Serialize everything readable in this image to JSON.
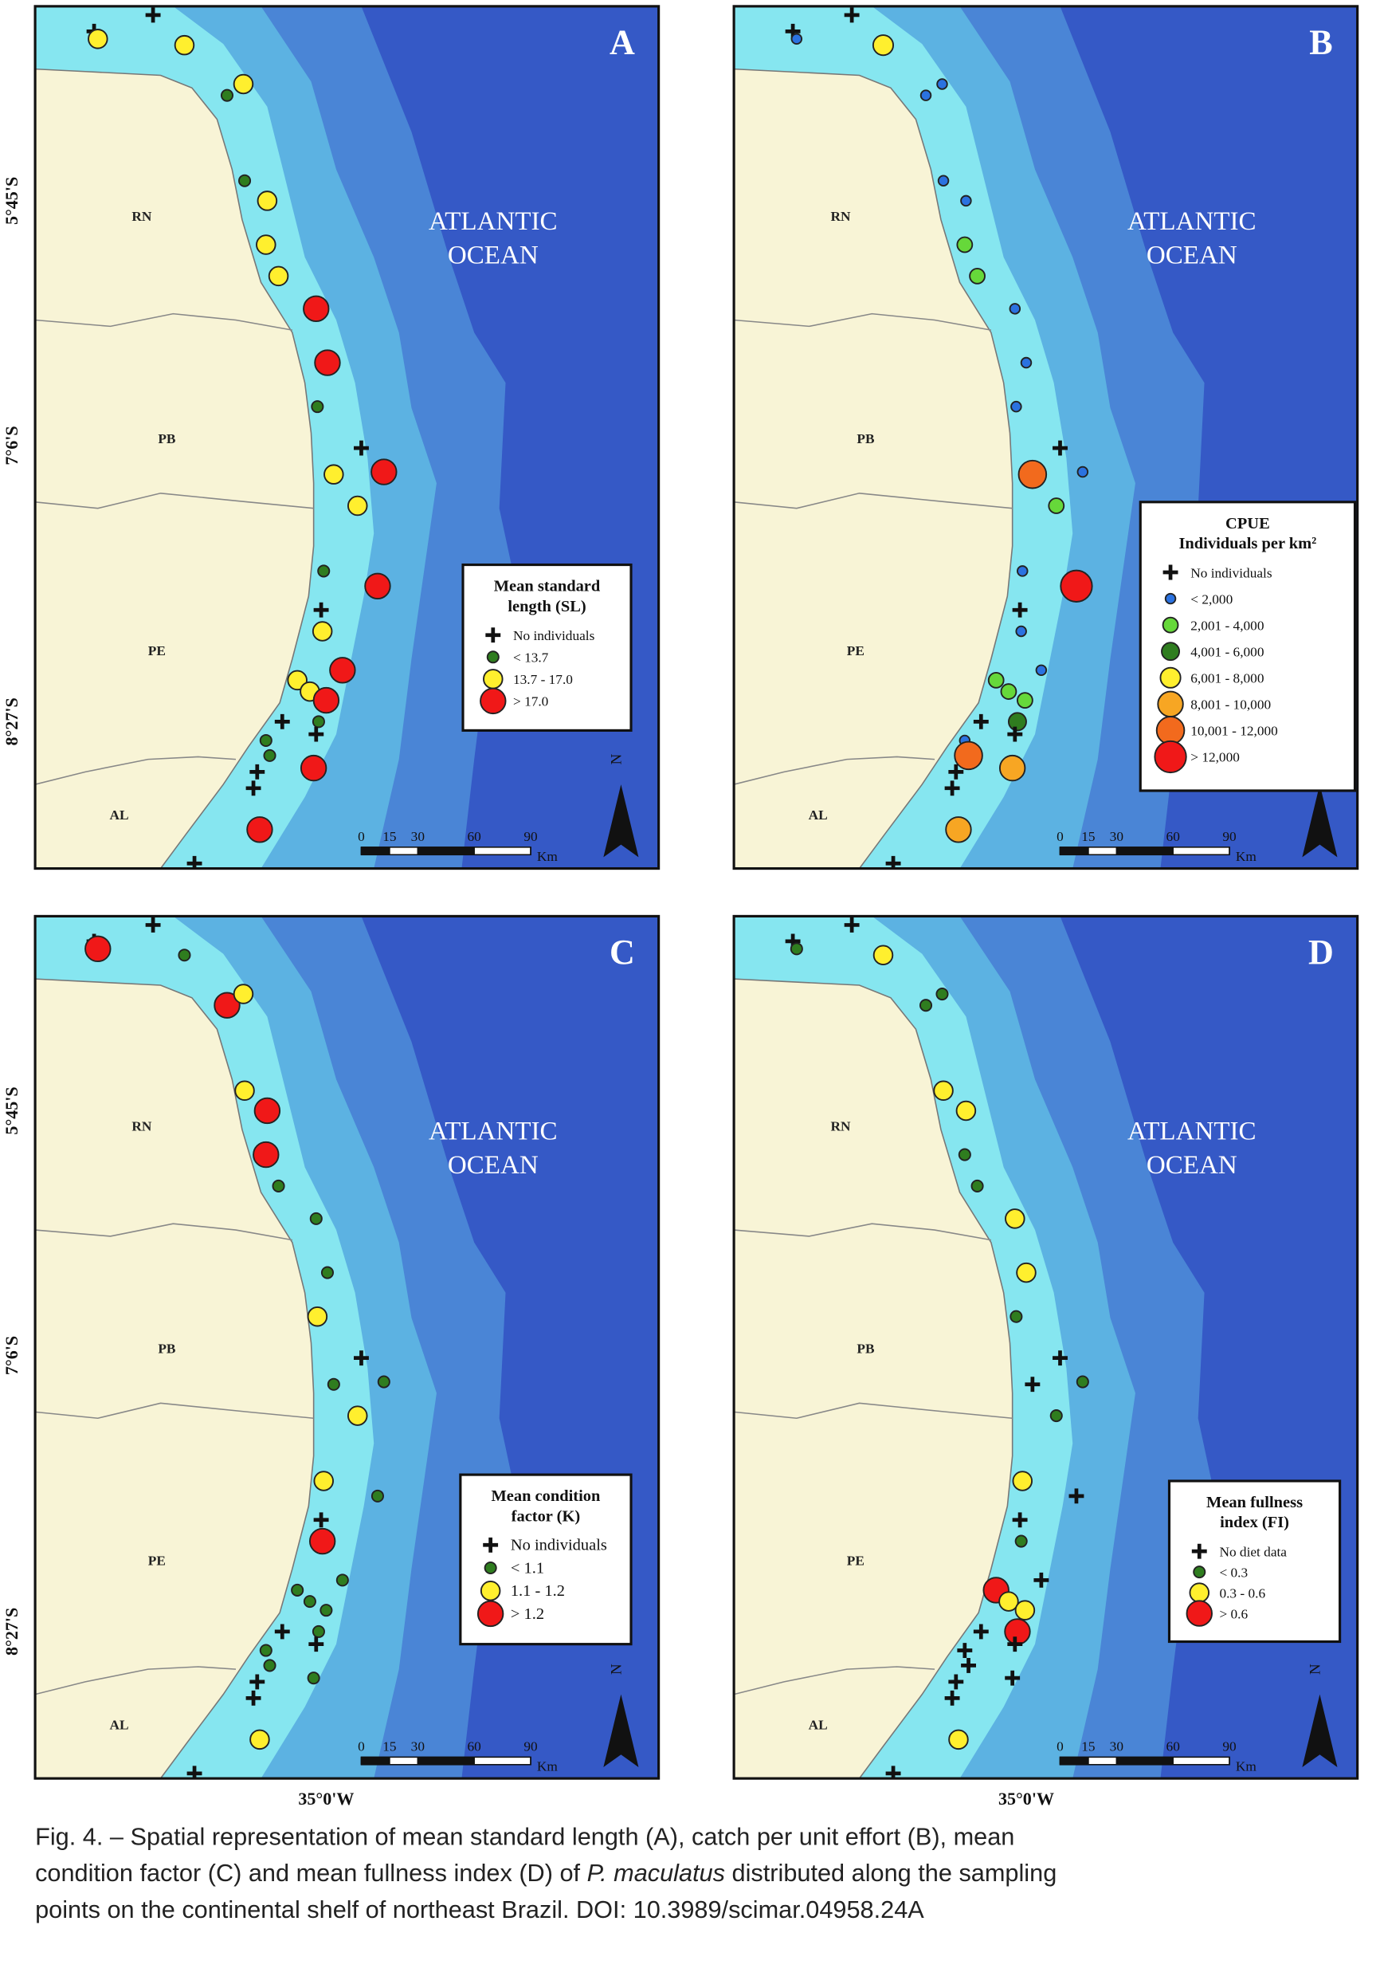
{
  "panels": [
    {
      "letter": "A",
      "legend": {
        "title": [
          "Mean standard",
          "length (SL)"
        ],
        "entries": [
          "No individuals",
          "< 13.7",
          "13.7 - 17.0",
          "> 17.0"
        ]
      }
    },
    {
      "letter": "B",
      "legend": {
        "title": [
          "CPUE",
          "Individuals per km²"
        ],
        "entries": [
          "No individuals",
          "< 2,000",
          "2,001 - 4,000",
          "4,001 - 6,000",
          "6,001 - 8,000",
          "8,001 - 10,000",
          "10,001 - 12,000",
          "> 12,000"
        ]
      }
    },
    {
      "letter": "C",
      "legend": {
        "title": [
          "Mean condition",
          "factor (K)"
        ],
        "entries": [
          "No individuals",
          "< 1.1",
          "1.1 - 1.2",
          "> 1.2"
        ]
      }
    },
    {
      "letter": "D",
      "legend": {
        "title": [
          "Mean fullness",
          "index (FI)"
        ],
        "entries": [
          "No diet data",
          "< 0.3",
          "0.3 - 0.6",
          "> 0.6"
        ]
      }
    }
  ],
  "states": [
    "RN",
    "PB",
    "PE",
    "AL"
  ],
  "ocean": [
    "ATLANTIC",
    "OCEAN"
  ],
  "scale": {
    "ticks": [
      0,
      15,
      30,
      60,
      90
    ],
    "unit": "Km"
  },
  "north": "N",
  "latitudes": [
    "5°45'S",
    "7°6'S",
    "8°27'S"
  ],
  "longitude": "35°0'W",
  "caption": {
    "line1": "Fig. 4. – Spatial representation of mean standard length (A), catch per unit effort (B), mean",
    "line2": [
      "condition factor (C) and mean fullness index (D) of ",
      "P. maculatus",
      " distributed along the sampling"
    ],
    "line3": "points on the continental shelf of northeast Brazil. DOI: 10.3989/scimar.04958.24A"
  }
}
